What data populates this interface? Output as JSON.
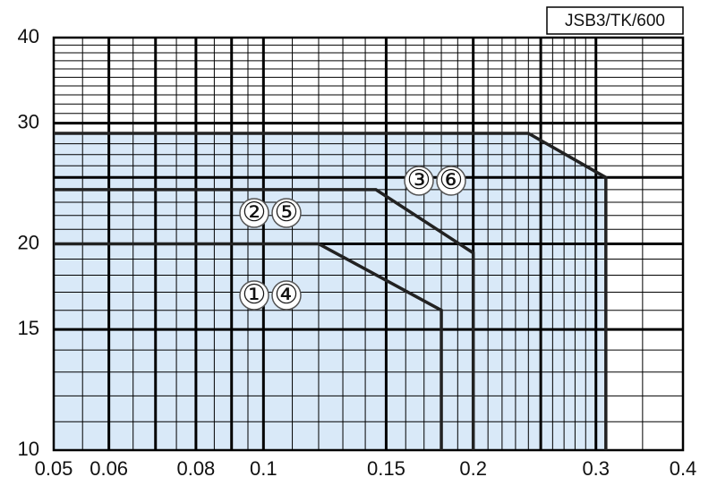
{
  "chart_data": {
    "type": "line",
    "code_label": "JSB3/TK/600",
    "xscale": "log",
    "yscale": "log",
    "xlim": [
      0.05,
      0.4
    ],
    "ylim": [
      10,
      40
    ],
    "xticks": [
      0.05,
      0.06,
      0.08,
      0.1,
      0.15,
      0.2,
      0.3,
      0.4
    ],
    "yticks": [
      10,
      15,
      20,
      30,
      40
    ],
    "x_major_grid": [
      0.06,
      0.07,
      0.08,
      0.09,
      0.1,
      0.15,
      0.2,
      0.25,
      0.3
    ],
    "x_minor_grid": [
      0.055,
      0.065,
      0.075,
      0.085,
      0.095,
      0.11,
      0.12,
      0.13,
      0.14,
      0.16,
      0.17,
      0.18,
      0.19,
      0.21,
      0.22,
      0.23,
      0.24,
      0.26,
      0.27,
      0.28,
      0.29,
      0.35
    ],
    "y_major_grid": [
      15,
      20,
      25,
      30
    ],
    "y_minor_grid": [
      11,
      12,
      13,
      14,
      16,
      17,
      18,
      19,
      21,
      22,
      23,
      24,
      26,
      27,
      28,
      29,
      31,
      32,
      33,
      34,
      35,
      36,
      37,
      38,
      39
    ],
    "fill_color": "#d9e9f8",
    "series": [
      {
        "labels": [
          "①",
          "④"
        ],
        "color": "#222222",
        "x": [
          0.05,
          0.12,
          0.18,
          0.18
        ],
        "values": [
          20,
          20,
          16,
          10
        ]
      },
      {
        "labels": [
          "②",
          "⑤"
        ],
        "color": "#222222",
        "x": [
          0.05,
          0.145,
          0.2,
          0.2
        ],
        "values": [
          24,
          24,
          19.4,
          10
        ]
      },
      {
        "labels": [
          "③",
          "⑥"
        ],
        "color": "#222222",
        "x": [
          0.05,
          0.24,
          0.31,
          0.31
        ],
        "values": [
          29,
          29,
          25,
          10
        ]
      }
    ]
  }
}
